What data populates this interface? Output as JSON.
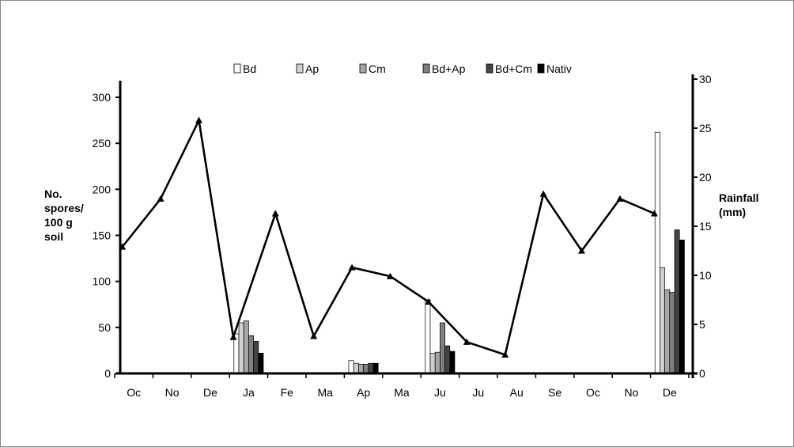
{
  "chart_data": {
    "type": "bar+line",
    "categories": [
      "Oc",
      "No",
      "De",
      "Ja",
      "Fe",
      "Ma",
      "Ap",
      "Ma",
      "Ju",
      "Ju",
      "Au",
      "Se",
      "Oc",
      "No",
      "De"
    ],
    "ylabel_left": [
      "No.",
      "spores/",
      "100 g",
      "soil"
    ],
    "ylabel_right": [
      "Rainfall",
      "(mm)"
    ],
    "ylim_left": [
      0,
      300
    ],
    "ylim_right": [
      0,
      30
    ],
    "yticks_left": [
      "0",
      "50",
      "100",
      "150",
      "200",
      "250",
      "300"
    ],
    "yticks_right": [
      "0",
      "5",
      "10",
      "15",
      "20",
      "25",
      "30"
    ],
    "legend_position": "top",
    "series": [
      {
        "name": "Bd",
        "color": "#ffffff",
        "values": [
          null,
          null,
          null,
          43,
          null,
          null,
          14,
          null,
          80,
          null,
          null,
          null,
          null,
          null,
          262
        ]
      },
      {
        "name": "Ap",
        "color": "#d0d0d0",
        "values": [
          null,
          null,
          null,
          55,
          null,
          null,
          11,
          null,
          22,
          null,
          null,
          null,
          null,
          null,
          115
        ]
      },
      {
        "name": "Cm",
        "color": "#a6a6a6",
        "values": [
          null,
          null,
          null,
          57,
          null,
          null,
          10,
          null,
          23,
          null,
          null,
          null,
          null,
          null,
          91
        ]
      },
      {
        "name": "Bd+Ap",
        "color": "#7f7f7f",
        "values": [
          null,
          null,
          null,
          41,
          null,
          null,
          10,
          null,
          55,
          null,
          null,
          null,
          null,
          null,
          88
        ]
      },
      {
        "name": "Bd+Cm",
        "color": "#444444",
        "values": [
          null,
          null,
          null,
          35,
          null,
          null,
          11,
          null,
          30,
          null,
          null,
          null,
          null,
          null,
          156
        ]
      },
      {
        "name": "Nativ",
        "color": "#000000",
        "values": [
          null,
          null,
          null,
          22,
          null,
          null,
          11,
          null,
          24,
          null,
          null,
          null,
          null,
          null,
          145
        ]
      }
    ],
    "line": {
      "axis": "right",
      "x": [
        0.2,
        1.2,
        2.2,
        3.1,
        4.2,
        5.2,
        6.2,
        7.2,
        8.2,
        9.2,
        10.2,
        11.2,
        12.2,
        13.2,
        14.1
      ],
      "values": [
        12.9,
        17.8,
        25.8,
        3.7,
        16.3,
        3.8,
        10.8,
        9.9,
        7.3,
        3.2,
        1.9,
        18.3,
        12.5,
        17.8,
        16.3
      ]
    }
  }
}
